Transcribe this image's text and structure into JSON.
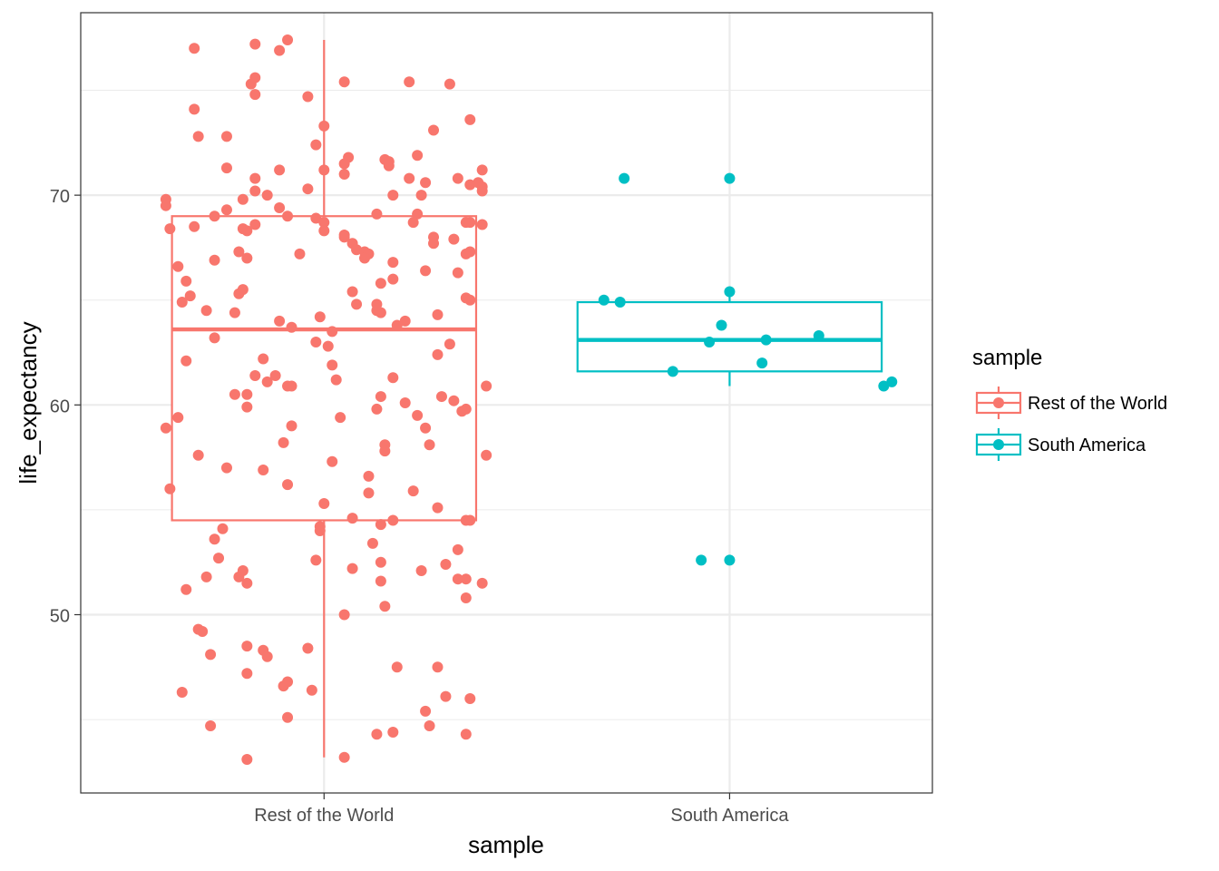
{
  "chart_data": {
    "type": "boxplot",
    "title": "",
    "xlabel": "sample",
    "ylabel": "life_expectancy",
    "categories": [
      "Rest of the World",
      "South America"
    ],
    "ylim": [
      41.5,
      78.7
    ],
    "yticks": [
      50,
      60,
      70
    ],
    "grid": true,
    "legend": {
      "title": "sample",
      "position": "right",
      "entries": [
        "Rest of the World",
        "South America"
      ]
    },
    "series": [
      {
        "name": "Rest of the World",
        "color": "#f8766d",
        "box": {
          "min": 43.2,
          "q1": 54.5,
          "median": 63.6,
          "q3": 69.0,
          "max": 77.4
        },
        "points": [
          [
            -0.32,
            77.0
          ],
          [
            -0.17,
            77.2
          ],
          [
            -0.11,
            76.9
          ],
          [
            -0.09,
            77.4
          ],
          [
            -0.32,
            74.1
          ],
          [
            -0.18,
            75.3
          ],
          [
            -0.17,
            75.6
          ],
          [
            -0.17,
            74.8
          ],
          [
            -0.04,
            74.7
          ],
          [
            0.05,
            75.4
          ],
          [
            0.21,
            75.4
          ],
          [
            0.31,
            75.3
          ],
          [
            0.36,
            73.6
          ],
          [
            0.27,
            73.1
          ],
          [
            0.0,
            73.3
          ],
          [
            -0.31,
            72.8
          ],
          [
            -0.24,
            72.8
          ],
          [
            -0.02,
            72.4
          ],
          [
            0.06,
            71.8
          ],
          [
            0.05,
            71.5
          ],
          [
            0.15,
            71.7
          ],
          [
            0.16,
            71.6
          ],
          [
            0.16,
            71.4
          ],
          [
            0.23,
            71.9
          ],
          [
            -0.24,
            71.3
          ],
          [
            -0.11,
            71.2
          ],
          [
            0.0,
            71.2
          ],
          [
            0.33,
            70.8
          ],
          [
            0.39,
            71.2
          ],
          [
            0.38,
            70.6
          ],
          [
            0.39,
            70.4
          ],
          [
            0.39,
            70.2
          ],
          [
            0.36,
            70.5
          ],
          [
            -0.17,
            70.8
          ],
          [
            -0.17,
            70.2
          ],
          [
            -0.14,
            70.0
          ],
          [
            -0.04,
            70.3
          ],
          [
            0.05,
            71.0
          ],
          [
            0.21,
            70.8
          ],
          [
            0.25,
            70.6
          ],
          [
            0.24,
            70.0
          ],
          [
            0.17,
            70.0
          ],
          [
            -0.39,
            69.8
          ],
          [
            -0.39,
            69.5
          ],
          [
            -0.27,
            69.0
          ],
          [
            -0.24,
            69.3
          ],
          [
            -0.2,
            69.8
          ],
          [
            -0.11,
            69.4
          ],
          [
            -0.09,
            69.0
          ],
          [
            -0.02,
            68.9
          ],
          [
            0.0,
            68.7
          ],
          [
            0.13,
            69.1
          ],
          [
            0.23,
            69.1
          ],
          [
            0.35,
            68.7
          ],
          [
            0.39,
            68.6
          ],
          [
            -0.38,
            68.4
          ],
          [
            -0.32,
            68.5
          ],
          [
            -0.2,
            68.4
          ],
          [
            -0.19,
            68.3
          ],
          [
            -0.17,
            68.6
          ],
          [
            0.0,
            68.3
          ],
          [
            0.05,
            68.0
          ],
          [
            0.05,
            68.1
          ],
          [
            0.22,
            68.7
          ],
          [
            0.27,
            68.0
          ],
          [
            0.27,
            67.7
          ],
          [
            0.32,
            67.9
          ],
          [
            0.35,
            67.2
          ],
          [
            0.36,
            68.7
          ],
          [
            0.36,
            67.3
          ],
          [
            0.07,
            67.7
          ],
          [
            0.08,
            67.4
          ],
          [
            0.1,
            67.3
          ],
          [
            0.11,
            67.2
          ],
          [
            0.1,
            67.0
          ],
          [
            0.17,
            66.8
          ],
          [
            -0.36,
            66.6
          ],
          [
            -0.27,
            66.9
          ],
          [
            -0.21,
            67.3
          ],
          [
            -0.19,
            67.0
          ],
          [
            -0.06,
            67.2
          ],
          [
            0.14,
            65.8
          ],
          [
            0.17,
            66.0
          ],
          [
            0.25,
            66.4
          ],
          [
            0.33,
            66.3
          ],
          [
            -0.34,
            65.9
          ],
          [
            -0.33,
            65.2
          ],
          [
            -0.2,
            65.5
          ],
          [
            -0.21,
            65.3
          ],
          [
            0.07,
            65.4
          ],
          [
            -0.35,
            64.9
          ],
          [
            -0.29,
            64.5
          ],
          [
            -0.22,
            64.4
          ],
          [
            0.08,
            64.8
          ],
          [
            0.13,
            64.8
          ],
          [
            0.13,
            64.5
          ],
          [
            0.14,
            64.4
          ],
          [
            0.18,
            63.8
          ],
          [
            0.2,
            64.0
          ],
          [
            0.28,
            64.3
          ],
          [
            0.35,
            65.1
          ],
          [
            0.36,
            65.0
          ],
          [
            -0.11,
            64.0
          ],
          [
            -0.08,
            63.7
          ],
          [
            -0.01,
            64.2
          ],
          [
            0.02,
            63.5
          ],
          [
            -0.27,
            63.2
          ],
          [
            -0.02,
            63.0
          ],
          [
            0.01,
            62.8
          ],
          [
            0.31,
            62.9
          ],
          [
            -0.34,
            62.1
          ],
          [
            -0.15,
            62.2
          ],
          [
            -0.14,
            61.1
          ],
          [
            -0.17,
            61.4
          ],
          [
            -0.12,
            61.4
          ],
          [
            -0.09,
            60.9
          ],
          [
            -0.08,
            60.9
          ],
          [
            0.02,
            61.9
          ],
          [
            0.03,
            61.2
          ],
          [
            0.17,
            61.3
          ],
          [
            0.28,
            62.4
          ],
          [
            0.4,
            60.9
          ],
          [
            -0.22,
            60.5
          ],
          [
            -0.19,
            60.5
          ],
          [
            -0.19,
            59.9
          ],
          [
            0.14,
            60.4
          ],
          [
            0.2,
            60.1
          ],
          [
            0.23,
            59.5
          ],
          [
            0.29,
            60.4
          ],
          [
            0.32,
            60.2
          ],
          [
            0.35,
            59.8
          ],
          [
            0.34,
            59.7
          ],
          [
            0.13,
            59.8
          ],
          [
            0.04,
            59.4
          ],
          [
            -0.08,
            59.0
          ],
          [
            0.25,
            58.9
          ],
          [
            -0.39,
            58.9
          ],
          [
            -0.36,
            59.4
          ],
          [
            -0.1,
            58.2
          ],
          [
            0.15,
            58.1
          ],
          [
            0.15,
            57.8
          ],
          [
            0.26,
            58.1
          ],
          [
            -0.31,
            57.6
          ],
          [
            0.02,
            57.3
          ],
          [
            0.11,
            56.6
          ],
          [
            0.4,
            57.6
          ],
          [
            -0.24,
            57.0
          ],
          [
            -0.15,
            56.9
          ],
          [
            -0.09,
            56.2
          ],
          [
            0.11,
            55.8
          ],
          [
            0.22,
            55.9
          ],
          [
            -0.38,
            56.0
          ],
          [
            0.0,
            55.3
          ],
          [
            0.28,
            55.1
          ],
          [
            0.07,
            54.6
          ],
          [
            0.14,
            54.3
          ],
          [
            0.17,
            54.5
          ],
          [
            0.35,
            54.5
          ],
          [
            0.36,
            54.5
          ],
          [
            -0.25,
            54.1
          ],
          [
            -0.01,
            54.2
          ],
          [
            -0.01,
            54.0
          ],
          [
            0.12,
            53.4
          ],
          [
            -0.27,
            53.6
          ],
          [
            -0.26,
            52.7
          ],
          [
            0.33,
            53.1
          ],
          [
            -0.2,
            52.1
          ],
          [
            -0.02,
            52.6
          ],
          [
            0.07,
            52.2
          ],
          [
            0.14,
            52.5
          ],
          [
            0.24,
            52.1
          ],
          [
            0.3,
            52.4
          ],
          [
            -0.29,
            51.8
          ],
          [
            -0.21,
            51.8
          ],
          [
            -0.19,
            51.5
          ],
          [
            0.14,
            51.6
          ],
          [
            0.33,
            51.7
          ],
          [
            0.35,
            51.7
          ],
          [
            0.39,
            51.5
          ],
          [
            0.35,
            50.8
          ],
          [
            -0.34,
            51.2
          ],
          [
            0.15,
            50.4
          ],
          [
            0.05,
            50.0
          ],
          [
            -0.31,
            49.3
          ],
          [
            -0.3,
            49.2
          ],
          [
            -0.28,
            48.1
          ],
          [
            -0.19,
            48.5
          ],
          [
            -0.15,
            48.3
          ],
          [
            -0.14,
            48.0
          ],
          [
            -0.04,
            48.4
          ],
          [
            -0.19,
            47.2
          ],
          [
            -0.1,
            46.6
          ],
          [
            -0.09,
            46.8
          ],
          [
            0.18,
            47.5
          ],
          [
            0.28,
            47.5
          ],
          [
            -0.35,
            46.3
          ],
          [
            -0.03,
            46.4
          ],
          [
            0.3,
            46.1
          ],
          [
            0.36,
            46.0
          ],
          [
            0.25,
            45.4
          ],
          [
            -0.09,
            45.1
          ],
          [
            -0.28,
            44.7
          ],
          [
            0.26,
            44.7
          ],
          [
            0.13,
            44.3
          ],
          [
            0.17,
            44.4
          ],
          [
            0.35,
            44.3
          ],
          [
            -0.19,
            43.1
          ],
          [
            0.05,
            43.2
          ]
        ]
      },
      {
        "name": "South America",
        "color": "#00bfc4",
        "box": {
          "min": 60.9,
          "q1": 61.6,
          "median": 63.1,
          "q3": 64.9,
          "max": 65.4
        },
        "points": [
          [
            -0.26,
            70.8
          ],
          [
            0.0,
            70.8
          ],
          [
            -0.31,
            65.0
          ],
          [
            -0.27,
            64.9
          ],
          [
            0.0,
            65.4
          ],
          [
            -0.02,
            63.8
          ],
          [
            -0.05,
            63.0
          ],
          [
            0.09,
            63.1
          ],
          [
            0.22,
            63.3
          ],
          [
            -0.14,
            61.6
          ],
          [
            0.08,
            62.0
          ],
          [
            0.38,
            60.9
          ],
          [
            0.4,
            61.1
          ],
          [
            -0.07,
            52.6
          ],
          [
            0.0,
            52.6
          ]
        ]
      }
    ]
  }
}
